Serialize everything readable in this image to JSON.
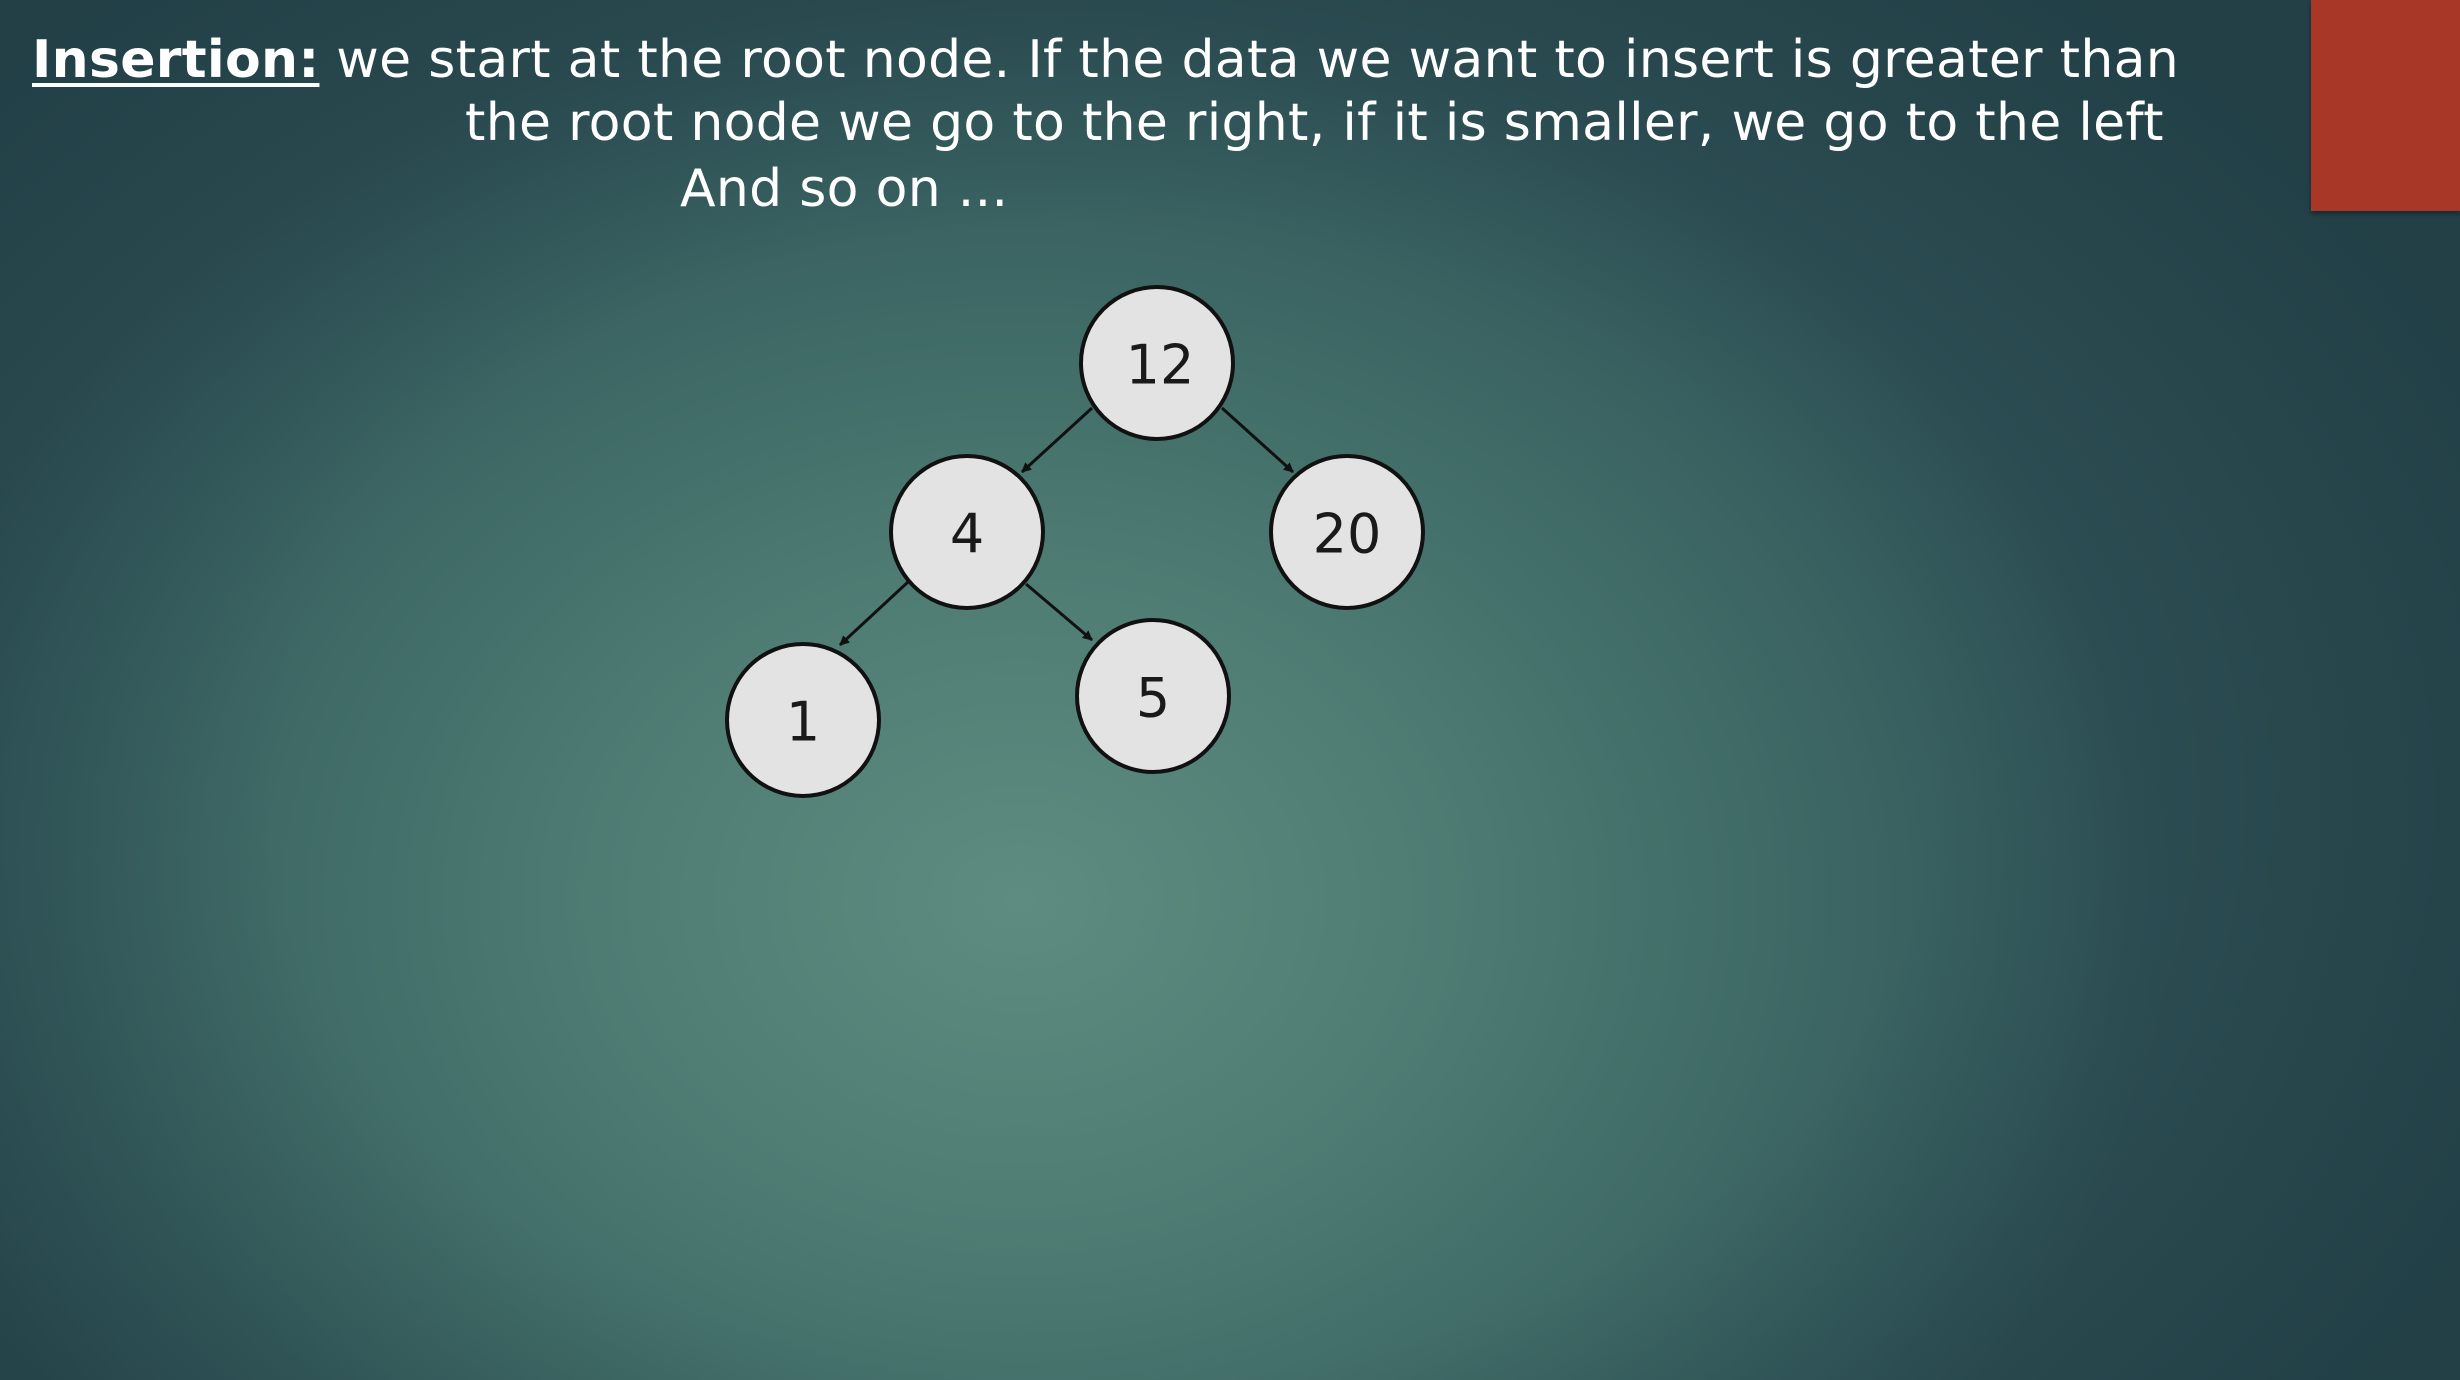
{
  "slide": {
    "colors": {
      "accent_block": "#a83727",
      "text": "#ffffff",
      "node_fill": "#e3e3e3",
      "node_stroke": "#111111"
    },
    "insertion_label": "Insertion:",
    "line1_text": " we start at the root node. If the data we want to insert is greater than",
    "line2_text": "the root node we go to the right, if it is smaller, we go to the left",
    "line3_text": "And so on ..."
  },
  "tree": {
    "nodes": [
      {
        "id": "n12",
        "value": "12"
      },
      {
        "id": "n4",
        "value": "4"
      },
      {
        "id": "n20",
        "value": "20"
      },
      {
        "id": "n1",
        "value": "1"
      },
      {
        "id": "n5",
        "value": "5"
      }
    ],
    "edges": [
      {
        "from": "n12",
        "to": "n4",
        "direction": "left"
      },
      {
        "from": "n12",
        "to": "n20",
        "direction": "right"
      },
      {
        "from": "n4",
        "to": "n1",
        "direction": "left"
      },
      {
        "from": "n4",
        "to": "n5",
        "direction": "right"
      }
    ]
  }
}
